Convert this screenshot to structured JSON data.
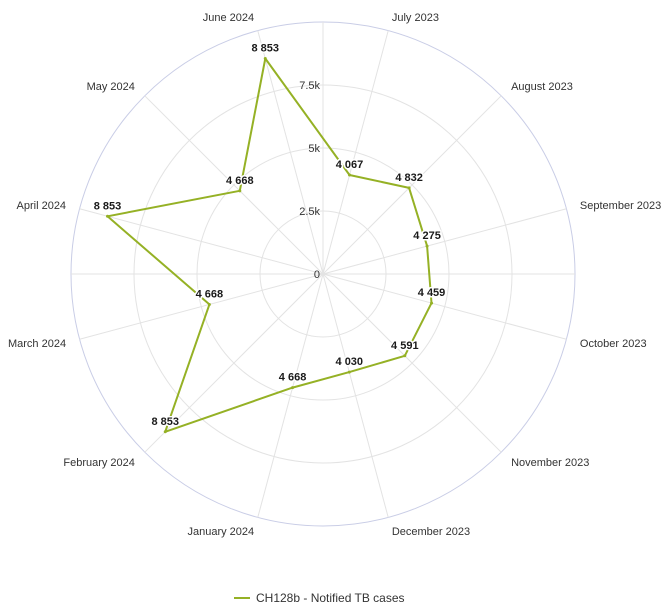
{
  "chart_data": {
    "type": "radar",
    "categories": [
      "July 2023",
      "August 2023",
      "September 2023",
      "October 2023",
      "November 2023",
      "December 2023",
      "January 2024",
      "February 2024",
      "March 2024",
      "April 2024",
      "May 2024",
      "June 2024"
    ],
    "series": [
      {
        "name": "CH128b - Notified TB cases",
        "values": [
          4067,
          4832,
          4275,
          4459,
          4591,
          4030,
          4668,
          8853,
          4668,
          8853,
          4668,
          8853
        ],
        "labels": [
          "4 067",
          "4 832",
          "4 275",
          "4 459",
          "4 591",
          "4 030",
          "4 668",
          "8 853",
          "4 668",
          "8 853",
          "4 668",
          "8 853"
        ],
        "color": "#95b125"
      }
    ],
    "radial_axis": {
      "min": 0,
      "max": 10000,
      "ticks": [
        0,
        2500,
        5000,
        7500
      ],
      "tick_labels": [
        "0",
        "2.5k",
        "5k",
        "7.5k"
      ]
    },
    "grid": true,
    "legend_position": "bottom"
  },
  "colors": {
    "series": "#95b125",
    "outer_ring": "#c9cde6",
    "grid": "#e3e3e3"
  }
}
